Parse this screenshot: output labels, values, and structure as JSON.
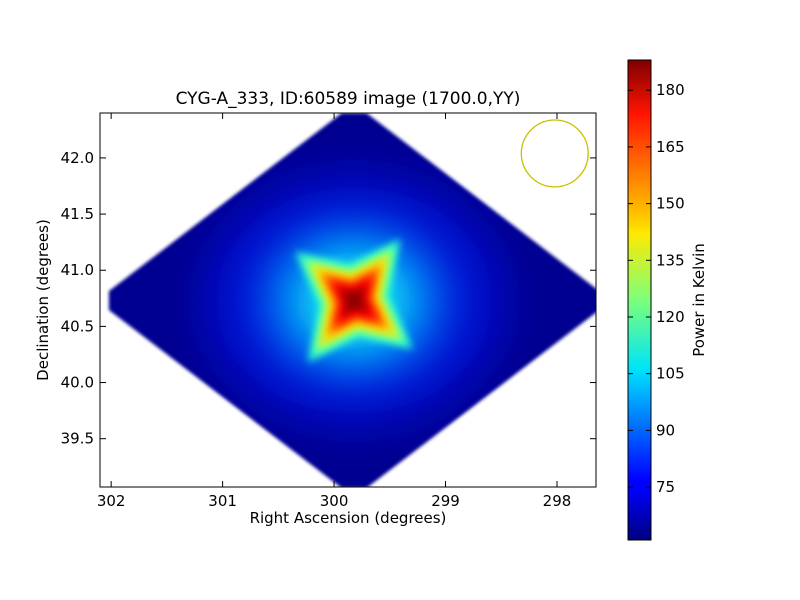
{
  "chart_data": {
    "type": "heatmap",
    "title": "CYG-A_333, ID:60589 image (1700.0,YY)",
    "xlabel": "Right Ascension (degrees)",
    "ylabel": "Declination (degrees)",
    "xlim": [
      302.1,
      297.65
    ],
    "ylim": [
      39.07,
      42.4
    ],
    "x_reversed": true,
    "xticks": [
      {
        "value": 302,
        "label": "302"
      },
      {
        "value": 301,
        "label": "301"
      },
      {
        "value": 300,
        "label": "300"
      },
      {
        "value": 299,
        "label": "299"
      },
      {
        "value": 298,
        "label": "298"
      }
    ],
    "yticks": [
      {
        "value": 39.5,
        "label": "39.5"
      },
      {
        "value": 40.0,
        "label": "40.0"
      },
      {
        "value": 40.5,
        "label": "40.5"
      },
      {
        "value": 41.0,
        "label": "41.0"
      },
      {
        "value": 41.5,
        "label": "41.5"
      },
      {
        "value": 42.0,
        "label": "42.0"
      }
    ],
    "map": {
      "colormap": "jet",
      "center_ra": 299.82,
      "center_dec": 40.73,
      "coverage_half_width_ra": 2.2,
      "coverage_half_height_dec": 1.67,
      "background_value": 63,
      "peak_value": 187,
      "halo_value": 92
    },
    "beam": {
      "ra": 298.02,
      "dec": 42.04,
      "radius_deg": 0.3,
      "color": "#c8c000"
    },
    "colorbar": {
      "label": "Power in Kelvin",
      "vmin": 61,
      "vmax": 188,
      "ticks": [
        {
          "value": 75,
          "label": "75"
        },
        {
          "value": 90,
          "label": "90"
        },
        {
          "value": 105,
          "label": "105"
        },
        {
          "value": 120,
          "label": "120"
        },
        {
          "value": 135,
          "label": "135"
        },
        {
          "value": 150,
          "label": "150"
        },
        {
          "value": 165,
          "label": "165"
        },
        {
          "value": 180,
          "label": "180"
        }
      ]
    }
  }
}
